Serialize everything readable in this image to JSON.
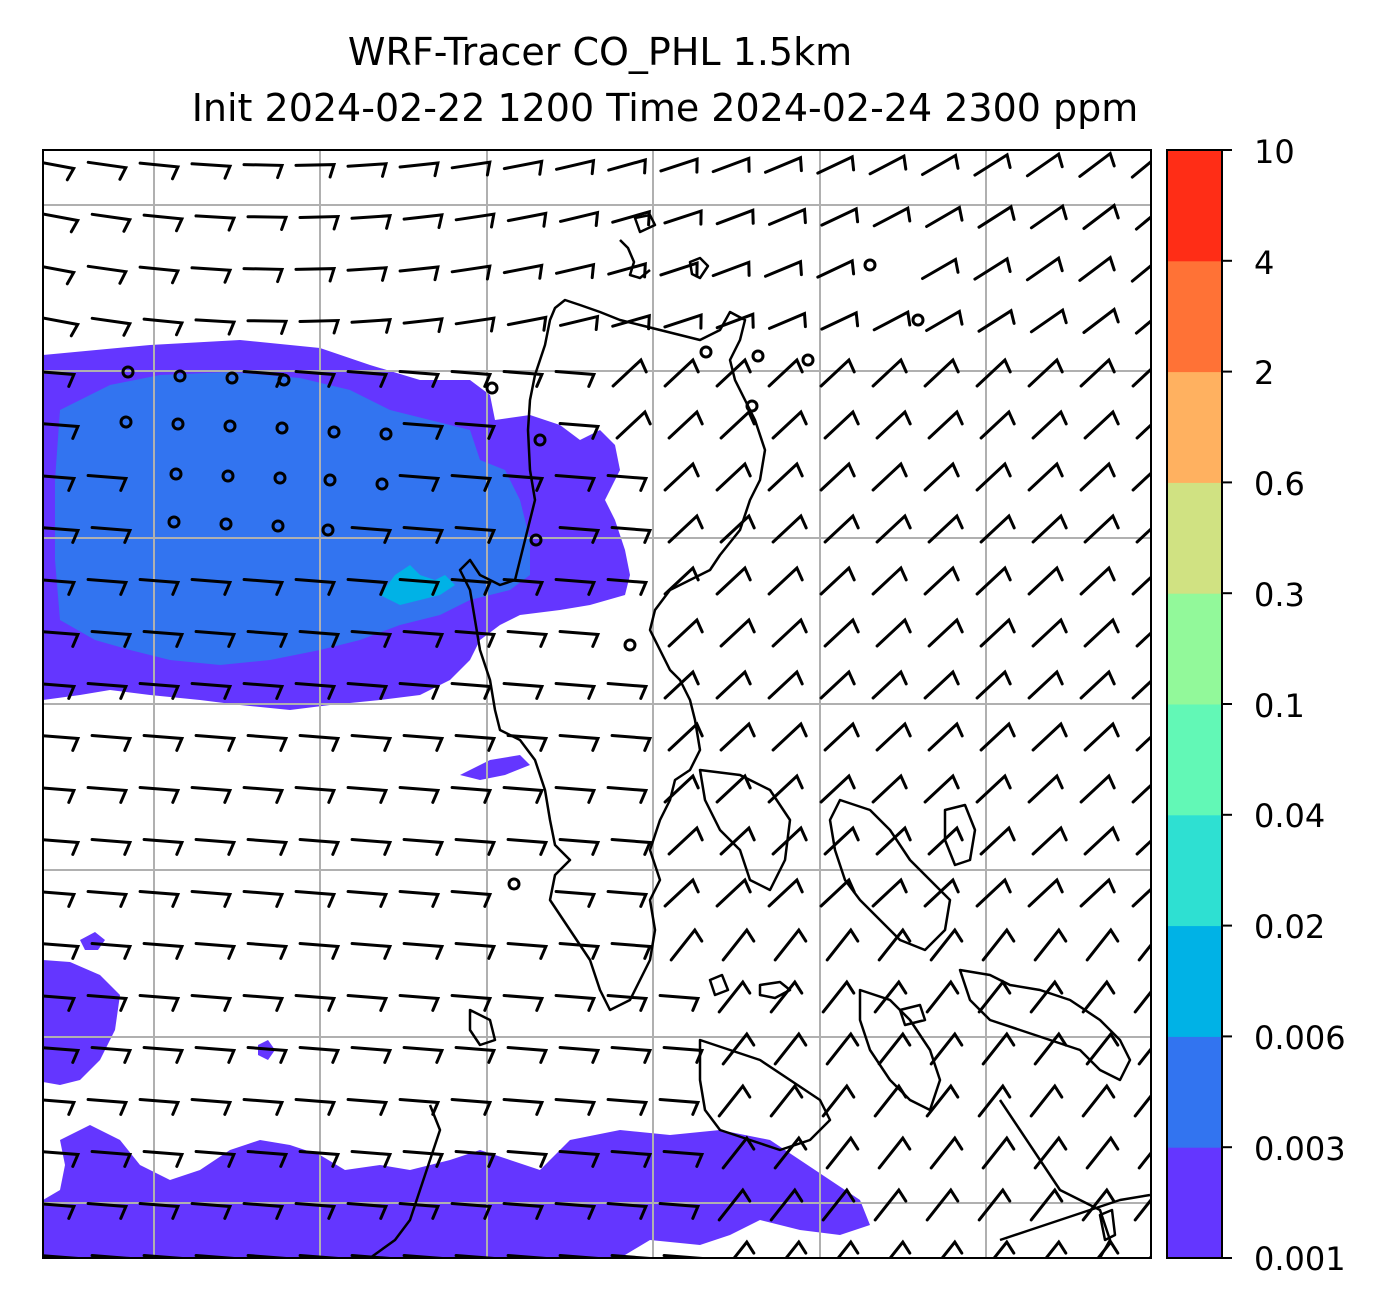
{
  "title": {
    "line1": "WRF-Tracer CO_PHL 1.5km",
    "line2": "Init 2024-02-22 1200 Time 2024-02-24 2300 ppm"
  },
  "colorbar": {
    "levels": [
      "0.001",
      "0.003",
      "0.006",
      "0.02",
      "0.04",
      "0.1",
      "0.3",
      "0.6",
      "2",
      "4",
      "10"
    ],
    "colors": [
      "#6436ff",
      "#3274f0",
      "#00b2e6",
      "#2ee0d2",
      "#62f8b6",
      "#92f99a",
      "#d0e282",
      "#ffb160",
      "#ff7236",
      "#ff2d16"
    ]
  },
  "map": {
    "gridlines": true,
    "features": [
      "coastline",
      "wind barbs",
      "tracer concentration fill"
    ]
  }
}
